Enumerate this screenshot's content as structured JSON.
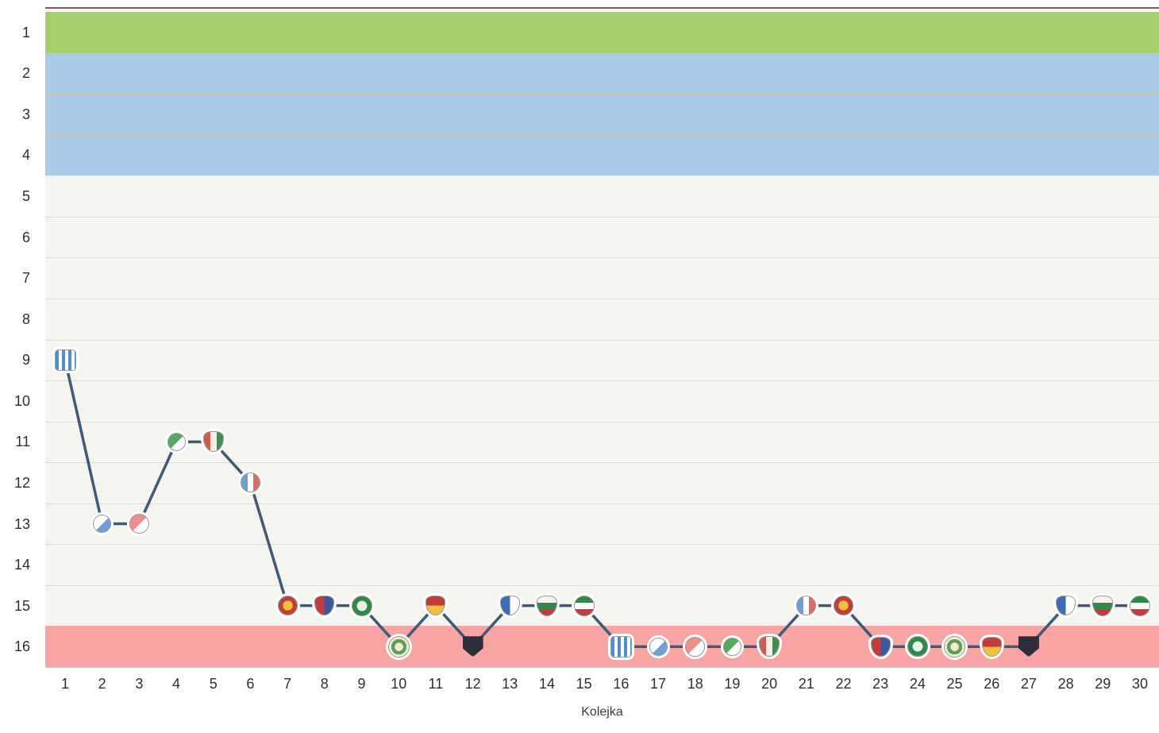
{
  "chart_data": {
    "type": "line",
    "title": "",
    "xlabel": "Kolejka",
    "ylabel": "",
    "x_ticks": [
      1,
      2,
      3,
      4,
      5,
      6,
      7,
      8,
      9,
      10,
      11,
      12,
      13,
      14,
      15,
      16,
      17,
      18,
      19,
      20,
      21,
      22,
      23,
      24,
      25,
      26,
      27,
      28,
      29,
      30
    ],
    "y_ticks": [
      1,
      2,
      3,
      4,
      5,
      6,
      7,
      8,
      9,
      10,
      11,
      12,
      13,
      14,
      15,
      16
    ],
    "y_axis_inverted": true,
    "x_range": [
      1,
      30
    ],
    "y_range": [
      1,
      16
    ],
    "grid": true,
    "legend": "none",
    "line_color": "#3d5a77",
    "top_border_color": "#a34d44",
    "grid_colors": {
      "european_zone": "#dcc3a2",
      "mid_zone": "#dcdad3",
      "axis": "#c9c9c5"
    },
    "zones": [
      {
        "name": "champion",
        "from_position": 1,
        "to_position": 1,
        "color": "#a6d06f"
      },
      {
        "name": "european-cups",
        "from_position": 2,
        "to_position": 4,
        "color": "#a9cbe8"
      },
      {
        "name": "mid-table",
        "from_position": 5,
        "to_position": 15,
        "color": "#f4f4f1"
      },
      {
        "name": "relegation",
        "from_position": 16,
        "to_position": 16,
        "color": "#f7a4a3"
      }
    ],
    "series": [
      {
        "name": "league-position-by-round",
        "values": [
          9,
          13,
          13,
          11,
          11,
          12,
          15,
          15,
          15,
          16,
          15,
          16,
          15,
          15,
          15,
          16,
          16,
          16,
          16,
          16,
          15,
          15,
          16,
          16,
          16,
          16,
          16,
          15,
          15,
          15
        ]
      }
    ],
    "marker_icons": [
      "crest-blue-white-striped-jersey",
      "crest-white-blue-flags",
      "crest-red-white-crossed-flags",
      "crest-green-white-flags",
      "crest-white-red-green-shield",
      "crest-blue-white-red-flags",
      "crest-red-yellow-round",
      "crest-red-blue-shield",
      "crest-green-white-round",
      "crest-cream-green-sunburst",
      "crest-red-yellow-shield",
      "crest-black-yellow-shield",
      "crest-blue-white-shield",
      "crest-white-green-red-shield",
      "crest-green-white-red-round",
      "crest-blue-white-striped-jersey",
      "crest-white-blue-flags",
      "crest-red-white-crossed-flags",
      "crest-green-white-flags",
      "crest-white-red-green-shield",
      "crest-blue-white-red-flags",
      "crest-red-yellow-round",
      "crest-red-blue-shield",
      "crest-green-white-round",
      "crest-cream-green-sunburst",
      "crest-red-yellow-shield",
      "crest-black-yellow-shield",
      "crest-blue-white-shield",
      "crest-white-green-red-shield",
      "crest-green-white-red-round"
    ],
    "icon_styles": {
      "crest-blue-white-striped-jersey": {
        "pattern": "stripes-v",
        "colors": [
          "#4d8fd1",
          "#ffffff"
        ],
        "shape": "square",
        "size": 27
      },
      "crest-white-blue-flags": {
        "pattern": "diag",
        "colors": [
          "#ffffff",
          "#6f9fd8"
        ],
        "shape": "circle",
        "size": 23
      },
      "crest-red-white-crossed-flags": {
        "pattern": "diag",
        "colors": [
          "#ef8f8a",
          "#ffffff"
        ],
        "shape": "circle",
        "size": 25
      },
      "crest-green-white-flags": {
        "pattern": "diag",
        "colors": [
          "#57a862",
          "#ffffff"
        ],
        "shape": "circle",
        "size": 23
      },
      "crest-white-red-green-shield": {
        "pattern": "tri-v",
        "colors": [
          "#cf5a4e",
          "#f5efe2",
          "#3e8f4e"
        ],
        "shape": "shield",
        "size": 26
      },
      "crest-blue-white-red-flags": {
        "pattern": "tri-v",
        "colors": [
          "#6f9fd8",
          "#ffffff",
          "#e06a6a"
        ],
        "shape": "circle",
        "size": 25
      },
      "crest-red-yellow-round": {
        "pattern": "ring",
        "colors": [
          "#c43b3b",
          "#efc13a"
        ],
        "shape": "circle",
        "size": 25
      },
      "crest-red-blue-shield": {
        "pattern": "halves-v",
        "colors": [
          "#c43b3b",
          "#3b5a9e"
        ],
        "shape": "shield",
        "size": 25
      },
      "crest-green-white-round": {
        "pattern": "ring",
        "colors": [
          "#2f8a4a",
          "#e9f2e6"
        ],
        "shape": "circle",
        "size": 26
      },
      "crest-cream-green-sunburst": {
        "pattern": "sun",
        "colors": [
          "#f4eccb",
          "#58a05b"
        ],
        "shape": "circle",
        "size": 27
      },
      "crest-red-yellow-shield": {
        "pattern": "halves-h",
        "colors": [
          "#c43b3b",
          "#efc13a"
        ],
        "shape": "shield",
        "size": 25
      },
      "crest-black-yellow-shield": {
        "pattern": "chevron",
        "colors": [
          "#2d2d3d",
          "#efc13a"
        ],
        "shape": "shield-point",
        "size": 26
      },
      "crest-blue-white-shield": {
        "pattern": "halves-v",
        "colors": [
          "#3f6cb4",
          "#ffffff"
        ],
        "shape": "shield",
        "size": 25
      },
      "crest-white-green-red-shield": {
        "pattern": "tri-h",
        "colors": [
          "#f2f2f0",
          "#2f8a4a",
          "#c43b3b"
        ],
        "shape": "shield",
        "size": 26
      },
      "crest-green-white-red-round": {
        "pattern": "tri-h",
        "colors": [
          "#2f8a4a",
          "#ffffff",
          "#c43b3b"
        ],
        "shape": "circle",
        "size": 26
      }
    }
  }
}
